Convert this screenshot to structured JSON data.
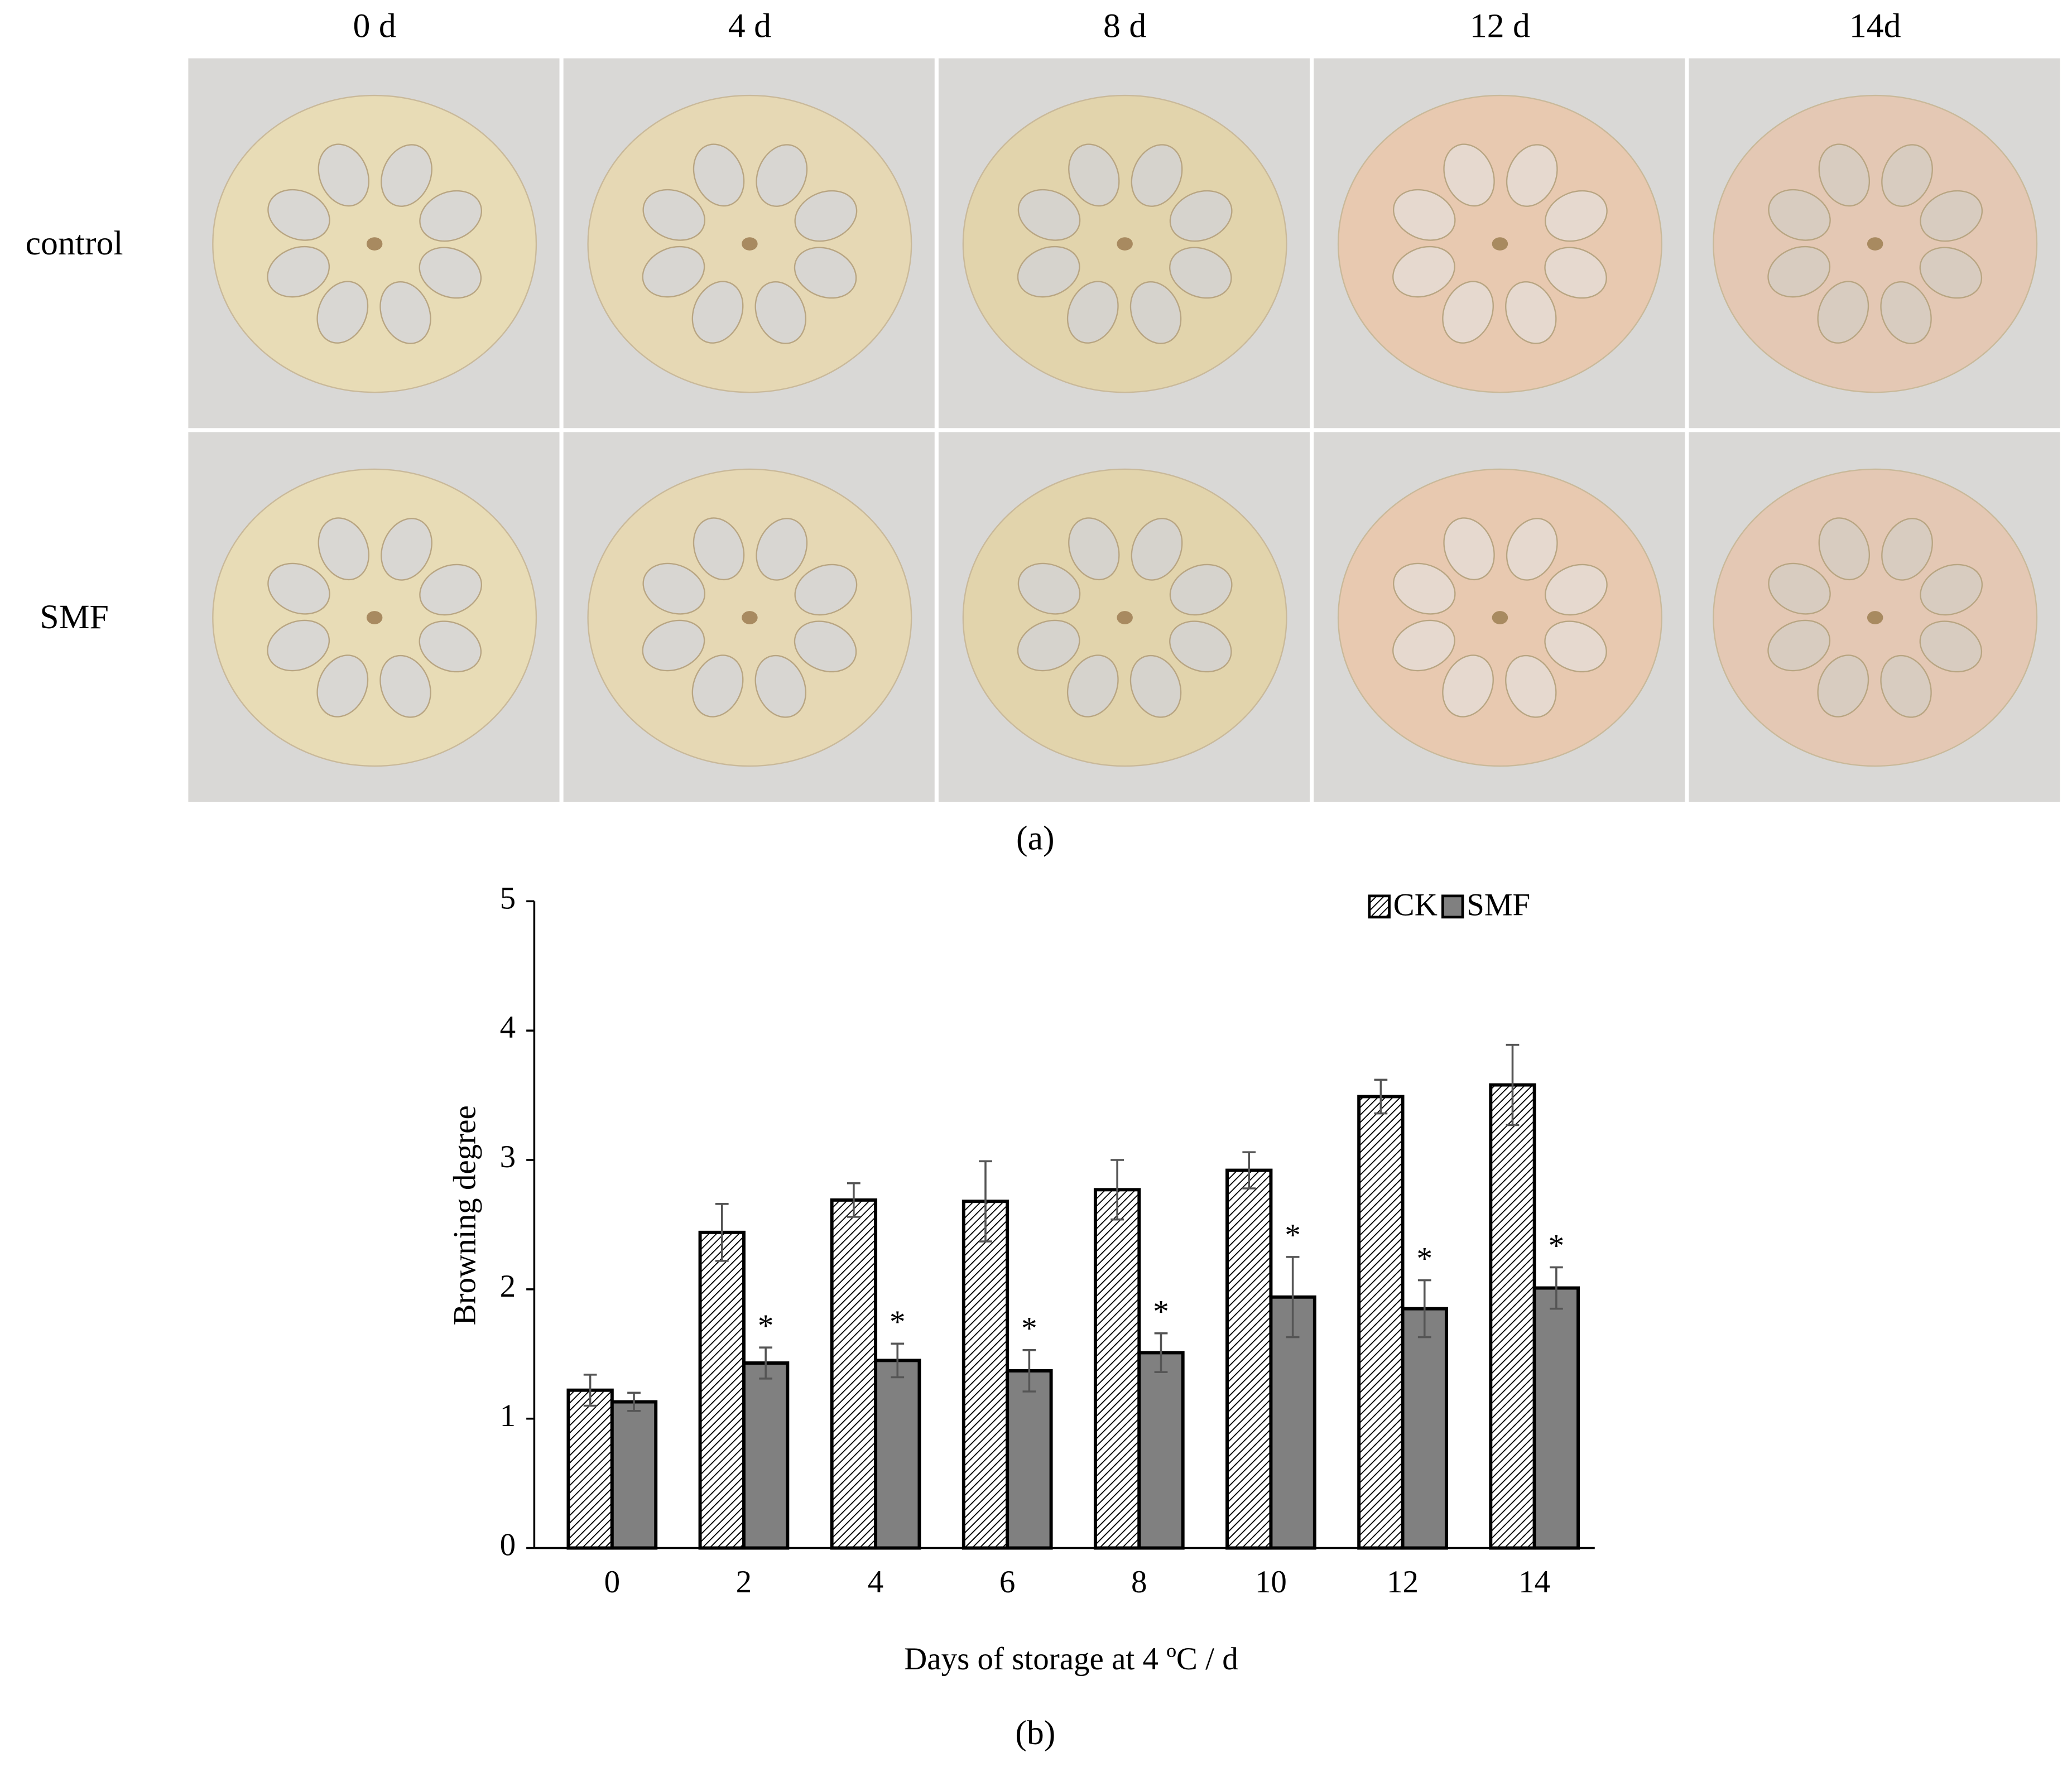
{
  "photo_panel": {
    "columns": [
      "0 d",
      "4 d",
      "8 d",
      "12 d",
      "14d"
    ],
    "rows": [
      "control",
      "SMF"
    ],
    "label": "(a)"
  },
  "chart_label": "(b)",
  "chart_data": {
    "type": "bar",
    "x_label": "Days of storage at 4 ºC / d",
    "y_label": "Browning degree",
    "categories": [
      "0",
      "2",
      "4",
      "6",
      "8",
      "10",
      "12",
      "14"
    ],
    "series": [
      {
        "name": "CK",
        "color": "#ffffff",
        "pattern": "hatch",
        "values": [
          1.22,
          2.44,
          2.69,
          2.68,
          2.77,
          2.92,
          3.49,
          3.58
        ],
        "errors": [
          0.12,
          0.22,
          0.13,
          0.31,
          0.23,
          0.14,
          0.13,
          0.31
        ]
      },
      {
        "name": "SMF",
        "color": "#808080",
        "values": [
          1.13,
          1.43,
          1.45,
          1.37,
          1.51,
          1.94,
          1.85,
          2.01
        ],
        "errors": [
          0.07,
          0.12,
          0.13,
          0.16,
          0.15,
          0.31,
          0.22,
          0.16
        ],
        "significance": [
          null,
          "*",
          "*",
          "*",
          "*",
          "*",
          "*",
          "*"
        ]
      }
    ],
    "ylim": [
      0,
      5
    ],
    "yticks": [
      0,
      1,
      2,
      3,
      4,
      5
    ],
    "legend": "top-right"
  }
}
